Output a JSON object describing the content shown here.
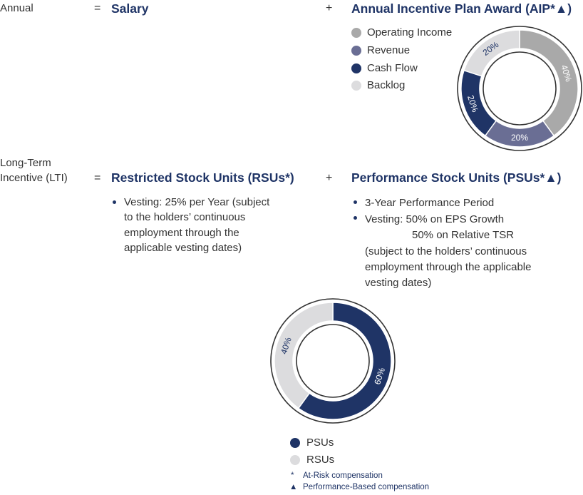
{
  "colors": {
    "navy": "#1f3466",
    "slate": "#6a6e94",
    "gray": "#a9a9a9",
    "light": "#dcdcde",
    "ring_outline": "#333333"
  },
  "annual": {
    "row_label": "Annual",
    "equals": "=",
    "salary": "Salary",
    "plus": "+",
    "aip_title": "Annual Incentive Plan Award (AIP*▲)"
  },
  "lti": {
    "row_label_line1": "Long-Term",
    "row_label_line2": "Incentive (LTI)",
    "equals": "=",
    "rsu_title": "Restricted Stock Units (RSUs*)",
    "plus": "+",
    "psu_title": "Performance Stock Units (PSUs*▲)",
    "rsu_bullets": [
      [
        "Vesting: 25% per Year (subject",
        "to the holders’ continuous",
        "employment through the",
        "applicable vesting dates)"
      ]
    ],
    "psu_bullets": [
      [
        "3-Year Performance Period"
      ],
      [
        "Vesting: 50% on EPS Growth",
        "50% on Relative TSR",
        "(subject to the holders’ continuous",
        "employment through the applicable",
        "vesting dates)"
      ]
    ]
  },
  "chart_data": [
    {
      "type": "pie",
      "categories": [
        "Operating Income",
        "Revenue",
        "Cash Flow",
        "Backlog"
      ],
      "values": [
        40,
        20,
        20,
        20
      ],
      "labels": [
        "40%",
        "20%",
        "20%",
        "20%"
      ],
      "legend_placement": "left"
    },
    {
      "type": "pie",
      "categories": [
        "PSUs",
        "RSUs"
      ],
      "values": [
        60,
        40
      ],
      "labels": [
        "60%",
        "40%"
      ],
      "legend_placement": "bottom"
    }
  ],
  "footnotes": [
    {
      "symbol": "*",
      "text": "At-Risk compensation"
    },
    {
      "symbol": "▲",
      "text": "Performance-Based compensation"
    }
  ]
}
